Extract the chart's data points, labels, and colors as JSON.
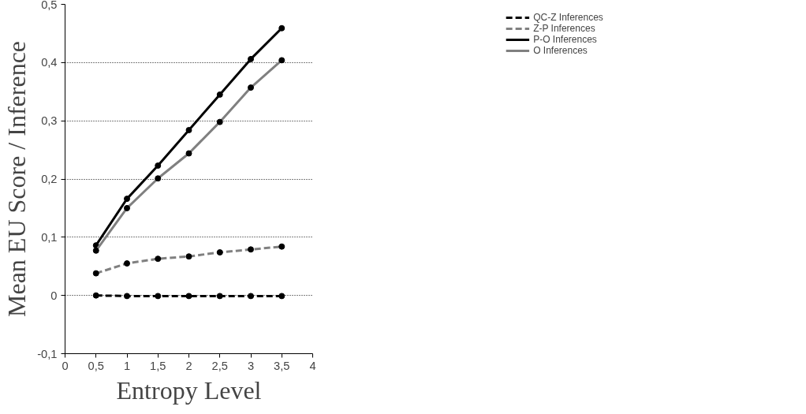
{
  "chart_data": {
    "type": "line",
    "xlabel": "Entropy Level",
    "ylabel": "Mean EU Score / Inference",
    "x": [
      0.5,
      1,
      1.5,
      2,
      2.5,
      3,
      3.5
    ],
    "xlim": [
      0,
      4
    ],
    "xticks": [
      0,
      {
        "value": 0.5,
        "label": "0,5"
      },
      1,
      {
        "value": 1.5,
        "label": "1,5"
      },
      2,
      {
        "value": 2.5,
        "label": "2,5"
      },
      3,
      {
        "value": 3.5,
        "label": "3,5"
      },
      4
    ],
    "ylim": [
      -0.1,
      0.5
    ],
    "yticks": [
      {
        "value": -0.1,
        "label": "-0,1"
      },
      0,
      {
        "value": 0.1,
        "label": "0,1"
      },
      {
        "value": 0.2,
        "label": "0,2"
      },
      {
        "value": 0.3,
        "label": "0,3"
      },
      {
        "value": 0.4,
        "label": "0,4"
      },
      {
        "value": 0.5,
        "label": "0,5"
      }
    ],
    "grid": "y",
    "legend": "top right",
    "marker": "circle",
    "series": [
      {
        "name": "QC-Z Inferences",
        "color": "#000000",
        "line_style": "dashed",
        "values": [
          0,
          -0.001,
          -0.001,
          -0.001,
          -0.001,
          -0.001,
          -0.001
        ]
      },
      {
        "name": "Z-P Inferences",
        "color": "#808080",
        "line_style": "dashed",
        "values": [
          0.038,
          0.055,
          0.063,
          0.067,
          0.074,
          0.079,
          0.084
        ]
      },
      {
        "name": "P-O Inferences",
        "color": "#000000",
        "line_style": "solid",
        "values": [
          0.086,
          0.166,
          0.223,
          0.284,
          0.345,
          0.406,
          0.459
        ]
      },
      {
        "name": "O Inferences",
        "color": "#808080",
        "line_style": "solid",
        "values": [
          0.077,
          0.15,
          0.201,
          0.244,
          0.298,
          0.357,
          0.404
        ]
      }
    ]
  }
}
